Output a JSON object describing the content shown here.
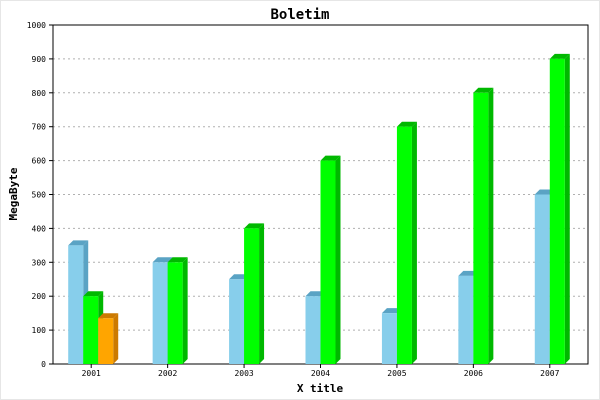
{
  "chart_data": {
    "type": "bar",
    "title": "Boletim",
    "xlabel": "X title",
    "ylabel": "MegaByte",
    "categories": [
      "2001",
      "2002",
      "2003",
      "2004",
      "2005",
      "2006",
      "2007"
    ],
    "ylim": [
      0,
      1000
    ],
    "yticks": [
      "0",
      "100",
      "200",
      "300",
      "400",
      "500",
      "600",
      "700",
      "800",
      "900",
      "1000"
    ],
    "grid": true,
    "style": "3d",
    "series": [
      {
        "values": [
          350,
          300,
          250,
          200,
          150,
          260,
          500
        ],
        "color": "#87ceeb",
        "side_color": "#5aa3c4"
      },
      {
        "values": [
          200,
          300,
          400,
          600,
          700,
          800,
          900
        ],
        "color": "#00ff00",
        "side_color": "#00b800"
      },
      {
        "values": [
          135,
          null,
          null,
          null,
          null,
          null,
          null
        ],
        "color": "#ffa500",
        "side_color": "#cc7a00"
      }
    ]
  }
}
